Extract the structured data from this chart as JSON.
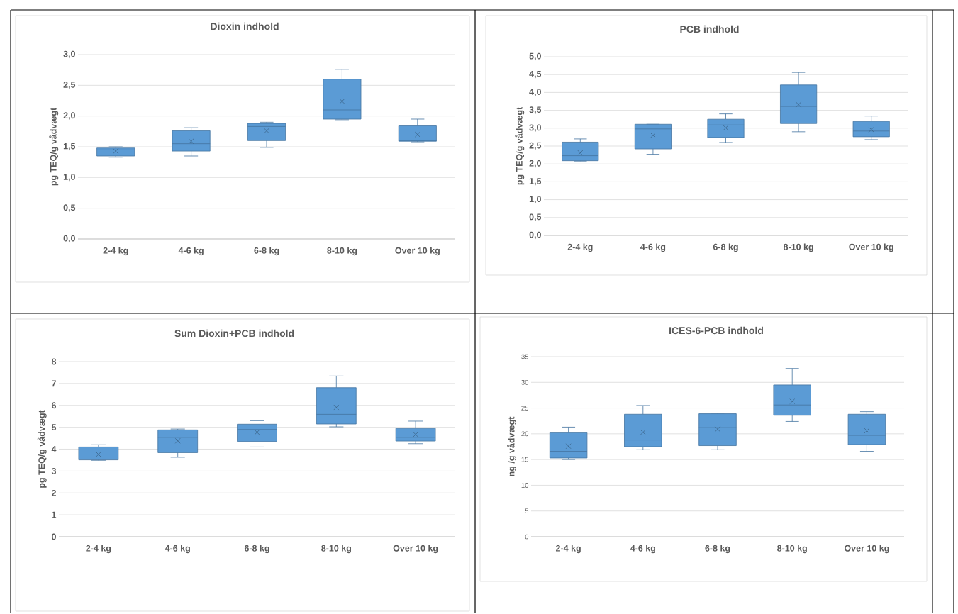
{
  "chart_data": [
    {
      "type": "box",
      "title": "Dioxin indhold",
      "ylabel": "pg TEQ/g vådvægt",
      "categories": [
        "2-4 kg",
        "4-6 kg",
        "6-8 kg",
        "8-10 kg",
        "Over 10 kg"
      ],
      "color": "#5b9bd5",
      "grid": "y",
      "ylim": [
        0,
        3
      ],
      "yticks": [
        {
          "value": 0,
          "label": "0,0"
        },
        {
          "value": 0.5,
          "label": "0,5"
        },
        {
          "value": 1,
          "label": "1,0"
        },
        {
          "value": 1.5,
          "label": "1,5"
        },
        {
          "value": 2,
          "label": "2,0"
        },
        {
          "value": 2.5,
          "label": "2,5"
        },
        {
          "value": 3,
          "label": "3,0"
        }
      ],
      "boxes": [
        {
          "low": 1.33,
          "q1": 1.35,
          "median": 1.45,
          "q3": 1.48,
          "high": 1.5,
          "mean": 1.43
        },
        {
          "low": 1.35,
          "q1": 1.43,
          "median": 1.55,
          "q3": 1.76,
          "high": 1.81,
          "mean": 1.59
        },
        {
          "low": 1.49,
          "q1": 1.6,
          "median": 1.83,
          "q3": 1.88,
          "high": 1.9,
          "mean": 1.76
        },
        {
          "low": 1.94,
          "q1": 1.95,
          "median": 2.1,
          "q3": 2.6,
          "high": 2.76,
          "mean": 2.24
        },
        {
          "low": 1.58,
          "q1": 1.59,
          "median": 1.6,
          "q3": 1.84,
          "high": 1.95,
          "mean": 1.7
        }
      ]
    },
    {
      "type": "box",
      "title": "PCB indhold",
      "ylabel": "pg TEQ/g vådvægt",
      "categories": [
        "2-4 kg",
        "4-6 kg",
        "6-8 kg",
        "8-10 kg",
        "Over 10 kg"
      ],
      "color": "#5b9bd5",
      "grid": "y",
      "ylim": [
        0,
        5
      ],
      "yticks": [
        {
          "value": 0,
          "label": "0,0"
        },
        {
          "value": 0.5,
          "label": "0,5"
        },
        {
          "value": 1,
          "label": "1,0"
        },
        {
          "value": 1.5,
          "label": "1,5"
        },
        {
          "value": 2,
          "label": "2,0"
        },
        {
          "value": 2.5,
          "label": "2,5"
        },
        {
          "value": 3,
          "label": "3,0"
        },
        {
          "value": 3.5,
          "label": "3,5"
        },
        {
          "value": 4,
          "label": "4,0"
        },
        {
          "value": 4.5,
          "label": "4,5"
        },
        {
          "value": 5,
          "label": "5,0"
        }
      ],
      "boxes": [
        {
          "low": 2.08,
          "q1": 2.09,
          "median": 2.23,
          "q3": 2.61,
          "high": 2.7,
          "mean": 2.31
        },
        {
          "low": 2.27,
          "q1": 2.42,
          "median": 2.98,
          "q3": 3.11,
          "high": 3.11,
          "mean": 2.8
        },
        {
          "low": 2.6,
          "q1": 2.74,
          "median": 3.09,
          "q3": 3.25,
          "high": 3.4,
          "mean": 3.01
        },
        {
          "low": 2.9,
          "q1": 3.13,
          "median": 3.61,
          "q3": 4.21,
          "high": 4.56,
          "mean": 3.66
        },
        {
          "low": 2.68,
          "q1": 2.76,
          "median": 2.92,
          "q3": 3.19,
          "high": 3.34,
          "mean": 2.96
        }
      ]
    },
    {
      "type": "box",
      "title": "Sum Dioxin+PCB indhold",
      "ylabel": "pg TEQ/g vådvægt",
      "categories": [
        "2-4 kg",
        "4-6 kg",
        "6-8 kg",
        "8-10 kg",
        "Over 10 kg"
      ],
      "color": "#5b9bd5",
      "grid": "y",
      "ylim": [
        0,
        8
      ],
      "yticks": [
        0,
        1,
        2,
        3,
        4,
        5,
        6,
        7,
        8
      ],
      "boxes": [
        {
          "low": 3.49,
          "q1": 3.51,
          "median": 3.54,
          "q3": 4.1,
          "high": 4.2,
          "mean": 3.76
        },
        {
          "low": 3.63,
          "q1": 3.84,
          "median": 4.54,
          "q3": 4.88,
          "high": 4.92,
          "mean": 4.38
        },
        {
          "low": 4.1,
          "q1": 4.35,
          "median": 4.9,
          "q3": 5.14,
          "high": 5.3,
          "mean": 4.77
        },
        {
          "low": 5.02,
          "q1": 5.15,
          "median": 5.59,
          "q3": 6.81,
          "high": 7.34,
          "mean": 5.91
        },
        {
          "low": 4.25,
          "q1": 4.37,
          "median": 4.54,
          "q3": 4.95,
          "high": 5.28,
          "mean": 4.67
        }
      ]
    },
    {
      "type": "box",
      "title": "ICES-6-PCB indhold",
      "ylabel": "ng /g vådvægt",
      "categories": [
        "2-4 kg",
        "4-6 kg",
        "6-8 kg",
        "8-10 kg",
        "Over 10 kg"
      ],
      "color": "#5b9bd5",
      "grid": "y",
      "ylim": [
        0,
        35
      ],
      "yticks": [
        0,
        5,
        10,
        15,
        20,
        25,
        30,
        35
      ],
      "boxes": [
        {
          "low": 15.0,
          "q1": 15.3,
          "median": 16.6,
          "q3": 20.2,
          "high": 21.3,
          "mean": 17.6
        },
        {
          "low": 16.9,
          "q1": 17.5,
          "median": 18.8,
          "q3": 23.8,
          "high": 25.5,
          "mean": 20.3
        },
        {
          "low": 16.9,
          "q1": 17.7,
          "median": 21.2,
          "q3": 23.9,
          "high": 24.0,
          "mean": 20.9
        },
        {
          "low": 22.4,
          "q1": 23.6,
          "median": 25.6,
          "q3": 29.5,
          "high": 32.7,
          "mean": 26.3
        },
        {
          "low": 16.6,
          "q1": 17.9,
          "median": 19.7,
          "q3": 23.8,
          "high": 24.3,
          "mean": 20.6
        }
      ]
    }
  ]
}
